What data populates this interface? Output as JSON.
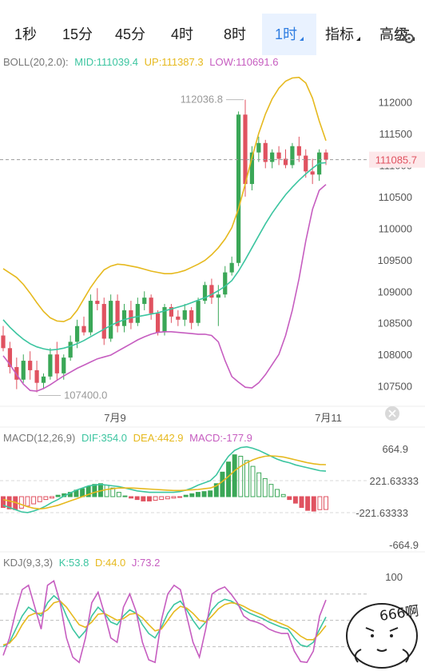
{
  "tabs": [
    {
      "label": "1秒",
      "active": false,
      "dropdown": false
    },
    {
      "label": "15分",
      "active": false,
      "dropdown": false
    },
    {
      "label": "45分",
      "active": false,
      "dropdown": false
    },
    {
      "label": "4时",
      "active": false,
      "dropdown": false
    },
    {
      "label": "8时",
      "active": false,
      "dropdown": false
    },
    {
      "label": "1时",
      "active": true,
      "dropdown": true
    },
    {
      "label": "指标",
      "active": false,
      "dropdown": true
    },
    {
      "label": "高级",
      "active": false,
      "dropdown": true
    }
  ],
  "settings_icon": "chart-settings-icon",
  "colors": {
    "up": "#3aa757",
    "down": "#e05260",
    "mid": "#3cc5a0",
    "upper": "#e6b91e",
    "lower": "#c65dc0",
    "dif": "#3cc5a0",
    "dea": "#e6b91e",
    "k": "#3cc5a0",
    "d": "#e6b91e",
    "j": "#c65dc0",
    "price_tag": "#e05260",
    "accent": "#2f7de1"
  },
  "boll_legend": {
    "name": "BOLL(20,2.0):",
    "mid": "MID:111039.4",
    "up": "UP:111387.3",
    "low": "LOW:110691.6"
  },
  "macd_legend": {
    "name": "MACD(12,26,9)",
    "dif": "DIF:354.0",
    "dea": "DEA:442.9",
    "macd": "MACD:-177.9"
  },
  "kdj_legend": {
    "name": "KDJ(9,3,3)",
    "k": "K:53.8",
    "d": "D:44.0",
    "j": "J:73.2"
  },
  "price_axis_labels": [
    "112000",
    "111500",
    "111000",
    "110500",
    "110000",
    "109500",
    "109000",
    "108500",
    "108000",
    "107500"
  ],
  "current_price_label": "111085.7",
  "high_annotation": "112036.8",
  "low_annotation": "107400.0",
  "date_labels": [
    "7月9",
    "7月11"
  ],
  "macd_axis_labels": [
    "664.9",
    "221.63333",
    "-221.63333",
    "-664.9"
  ],
  "kdj_axis_labels": [
    "100"
  ],
  "sticker_text": "666啊",
  "chart_data": [
    {
      "type": "candlestick",
      "indicator": "BOLL(20,2.0)",
      "ylim": [
        107280,
        112450
      ],
      "yticks": [
        112000,
        111500,
        111000,
        110500,
        110000,
        109500,
        109000,
        108500,
        108000,
        107500
      ],
      "x_tick_labels": [
        "7月9",
        "7月11"
      ],
      "current_price": 111085.7,
      "annotated_high": 112036.8,
      "annotated_low": 107400.0,
      "series": [
        {
          "name": "MID",
          "values": [
            108550,
            108430,
            108330,
            108240,
            108170,
            108120,
            108090,
            108070,
            108080,
            108100,
            108130,
            108170,
            108220,
            108280,
            108340,
            108400,
            108460,
            108510,
            108550,
            108580,
            108600,
            108620,
            108640,
            108660,
            108690,
            108720,
            108750,
            108780,
            108820,
            108860,
            108900,
            108950,
            109010,
            109080,
            109170,
            109320,
            109500,
            109690,
            109880,
            110070,
            110240,
            110390,
            110530,
            110650,
            110760,
            110860,
            110950,
            111030,
            111039
          ]
        },
        {
          "name": "UP",
          "values": [
            109360,
            109290,
            109220,
            109110,
            108970,
            108820,
            108680,
            108580,
            108530,
            108520,
            108570,
            108700,
            108880,
            109060,
            109210,
            109340,
            109400,
            109430,
            109420,
            109400,
            109380,
            109350,
            109320,
            109300,
            109280,
            109280,
            109300,
            109330,
            109380,
            109430,
            109490,
            109580,
            109690,
            109830,
            110010,
            110310,
            110700,
            111120,
            111500,
            111810,
            112050,
            112220,
            112330,
            112380,
            112390,
            112300,
            112060,
            111700,
            111387
          ]
        },
        {
          "name": "LOW",
          "values": [
            107980,
            107840,
            107680,
            107530,
            107430,
            107420,
            107460,
            107520,
            107590,
            107660,
            107720,
            107780,
            107830,
            107880,
            107930,
            107960,
            107990,
            108050,
            108110,
            108170,
            108230,
            108280,
            108320,
            108350,
            108360,
            108360,
            108350,
            108340,
            108330,
            108320,
            108320,
            108300,
            108200,
            107900,
            107650,
            107560,
            107480,
            107470,
            107550,
            107680,
            107840,
            108000,
            108300,
            108700,
            109200,
            109800,
            110300,
            110600,
            110692
          ]
        },
        {
          "name": "candles",
          "ohlc": [
            [
              108300,
              108450,
              108050,
              108100
            ],
            [
              108100,
              108200,
              107700,
              107800
            ],
            [
              107800,
              107950,
              107450,
              107600
            ],
            [
              107600,
              108000,
              107550,
              107900
            ],
            [
              107900,
              108050,
              107600,
              107750
            ],
            [
              107750,
              107900,
              107400,
              107550
            ],
            [
              107550,
              107700,
              107450,
              107650
            ],
            [
              107650,
              108100,
              107600,
              108000
            ],
            [
              108000,
              108200,
              107600,
              107700
            ],
            [
              107700,
              108000,
              107600,
              107950
            ],
            [
              107950,
              108300,
              107900,
              108200
            ],
            [
              108200,
              108550,
              108100,
              108450
            ],
            [
              108450,
              108600,
              108300,
              108350
            ],
            [
              108350,
              108950,
              108300,
              108850
            ],
            [
              108850,
              109050,
              108700,
              108800
            ],
            [
              108800,
              108900,
              108150,
              108250
            ],
            [
              108250,
              108950,
              108200,
              108850
            ],
            [
              108850,
              108950,
              108350,
              108450
            ],
            [
              108450,
              108800,
              108350,
              108700
            ],
            [
              108700,
              108850,
              108400,
              108500
            ],
            [
              108500,
              108900,
              108450,
              108800
            ],
            [
              108800,
              109000,
              108700,
              108900
            ],
            [
              108900,
              108950,
              108550,
              108650
            ],
            [
              108650,
              108700,
              108300,
              108350
            ],
            [
              108350,
              108800,
              108300,
              108750
            ],
            [
              108750,
              108800,
              108500,
              108600
            ],
            [
              108600,
              108700,
              108450,
              108550
            ],
            [
              108550,
              108800,
              108450,
              108700
            ],
            [
              108700,
              108750,
              108400,
              108500
            ],
            [
              108500,
              108900,
              108450,
              108850
            ],
            [
              108850,
              109150,
              108800,
              109100
            ],
            [
              109100,
              109200,
              108800,
              108900
            ],
            [
              108900,
              109100,
              108450,
              108950
            ],
            [
              108950,
              109400,
              108900,
              109300
            ],
            [
              109300,
              109550,
              109250,
              109450
            ],
            [
              109450,
              111850,
              109400,
              111800
            ],
            [
              111800,
              112036.8,
              110500,
              110700
            ],
            [
              110700,
              111300,
              110600,
              111200
            ],
            [
              111200,
              111450,
              111050,
              111350
            ],
            [
              111350,
              111400,
              110950,
              111050
            ],
            [
              111050,
              111250,
              110950,
              111200
            ],
            [
              111200,
              111300,
              111000,
              111100
            ],
            [
              111100,
              111250,
              110950,
              111000
            ],
            [
              111000,
              111350,
              110950,
              111300
            ],
            [
              111300,
              111450,
              111050,
              111150
            ],
            [
              111150,
              111250,
              110800,
              110900
            ],
            [
              110900,
              111100,
              110700,
              110850
            ],
            [
              110850,
              111250,
              110750,
              111200
            ],
            [
              111200,
              111250,
              111000,
              111085.7
            ]
          ]
        }
      ]
    },
    {
      "type": "bar",
      "indicator": "MACD(12,26,9)",
      "ylim": [
        -664.9,
        664.9
      ],
      "yticks": [
        664.9,
        221.63333,
        -221.63333,
        -664.9
      ],
      "series": [
        {
          "name": "MACD",
          "values": [
            -150,
            -170,
            -180,
            -160,
            -130,
            -100,
            -70,
            -40,
            -20,
            20,
            40,
            60,
            90,
            110,
            140,
            170,
            180,
            160,
            120,
            60,
            10,
            -20,
            -40,
            -60,
            -60,
            -50,
            -40,
            -30,
            -20,
            -10,
            20,
            40,
            60,
            70,
            80,
            180,
            340,
            480,
            580,
            560,
            500,
            420,
            330,
            250,
            170,
            100,
            30,
            -40,
            -90,
            -150,
            -190,
            -200,
            -180,
            -177.9
          ]
        },
        {
          "name": "DIF",
          "values": [
            -120,
            -150,
            -180,
            -210,
            -220,
            -200,
            -170,
            -130,
            -80,
            -40,
            10,
            50,
            90,
            120,
            150,
            160,
            170,
            160,
            150,
            140,
            120,
            100,
            80,
            70,
            60,
            60,
            60,
            60,
            60,
            70,
            90,
            120,
            160,
            190,
            220,
            300,
            440,
            560,
            640,
            680,
            690,
            670,
            640,
            600,
            560,
            520,
            490,
            470,
            440,
            420,
            400,
            380,
            360,
            354
          ]
        },
        {
          "name": "DEA",
          "values": [
            -40,
            -60,
            -80,
            -110,
            -140,
            -160,
            -170,
            -160,
            -140,
            -120,
            -90,
            -60,
            -30,
            0,
            30,
            60,
            80,
            100,
            110,
            120,
            120,
            120,
            115,
            110,
            105,
            100,
            95,
            90,
            85,
            85,
            90,
            95,
            100,
            110,
            120,
            150,
            210,
            280,
            360,
            420,
            470,
            510,
            540,
            560,
            565,
            560,
            550,
            530,
            510,
            490,
            470,
            455,
            445,
            442.9
          ]
        }
      ]
    },
    {
      "type": "line",
      "indicator": "KDJ(9,3,3)",
      "ylim": [
        -5,
        108
      ],
      "yticks": [
        100
      ],
      "series": [
        {
          "name": "K",
          "values": [
            20,
            25,
            40,
            55,
            65,
            60,
            55,
            70,
            78,
            72,
            55,
            40,
            30,
            38,
            55,
            65,
            58,
            48,
            45,
            55,
            62,
            58,
            45,
            35,
            30,
            42,
            58,
            68,
            72,
            62,
            50,
            40,
            48,
            62,
            70,
            74,
            72,
            68,
            62,
            58,
            55,
            52,
            48,
            45,
            42,
            40,
            30,
            22,
            20,
            25,
            40,
            53.8
          ]
        },
        {
          "name": "D",
          "values": [
            22,
            24,
            32,
            45,
            55,
            58,
            58,
            62,
            70,
            72,
            65,
            55,
            45,
            42,
            48,
            57,
            58,
            54,
            50,
            52,
            57,
            58,
            53,
            45,
            38,
            40,
            50,
            60,
            66,
            64,
            58,
            50,
            48,
            55,
            63,
            68,
            70,
            69,
            66,
            62,
            59,
            56,
            52,
            49,
            46,
            43,
            38,
            32,
            28,
            28,
            35,
            44.0
          ]
        },
        {
          "name": "J",
          "values": [
            10,
            30,
            60,
            85,
            90,
            65,
            40,
            90,
            95,
            70,
            30,
            8,
            2,
            30,
            70,
            82,
            58,
            30,
            25,
            65,
            80,
            60,
            25,
            5,
            2,
            50,
            80,
            90,
            85,
            55,
            25,
            8,
            40,
            80,
            85,
            88,
            80,
            70,
            55,
            50,
            48,
            45,
            40,
            37,
            35,
            35,
            15,
            3,
            2,
            15,
            55,
            73.2
          ]
        }
      ]
    }
  ]
}
